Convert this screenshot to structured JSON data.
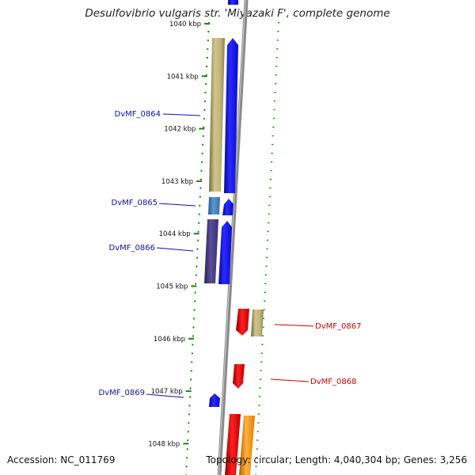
{
  "title": "Desulfovibrio vulgaris str. 'Miyazaki F', complete genome",
  "footer": {
    "accession": "Accession: NC_011769",
    "summary": "Topology: circular; Length: 4,040,304 bp; Genes: 3,256"
  },
  "colors": {
    "tick_green": "#2a7a1a",
    "dot_green": "#2c8a2c",
    "backbone": "#888888",
    "forward_label": "#1010aa",
    "reverse_label": "#cc0000",
    "gene_khaki": "#c2b67a",
    "gene_blue": "#1414ee",
    "gene_steelblue": "#4a86c0",
    "gene_purple": "#4a3f8a",
    "gene_red": "#e80c0c",
    "gene_orange": "#ff9a10"
  },
  "scale_ticks": [
    {
      "label": "1040 kbp",
      "pos": 1040
    },
    {
      "label": "1041 kbp",
      "pos": 1041
    },
    {
      "label": "1042 kbp",
      "pos": 1042
    },
    {
      "label": "1043 kbp",
      "pos": 1043
    },
    {
      "label": "1044 kbp",
      "pos": 1044
    },
    {
      "label": "1045 kbp",
      "pos": 1045
    },
    {
      "label": "1046 kbp",
      "pos": 1046
    },
    {
      "label": "1047 kbp",
      "pos": 1047
    },
    {
      "label": "1048 kbp",
      "pos": 1048
    }
  ],
  "gene_labels": [
    {
      "name": "DvMF_0864",
      "strand": "forward"
    },
    {
      "name": "DvMF_0865",
      "strand": "forward"
    },
    {
      "name": "DvMF_0866",
      "strand": "forward"
    },
    {
      "name": "DvMF_0867",
      "strand": "reverse"
    },
    {
      "name": "DvMF_0868",
      "strand": "reverse"
    },
    {
      "name": "DvMF_0869",
      "strand": "forward"
    }
  ]
}
